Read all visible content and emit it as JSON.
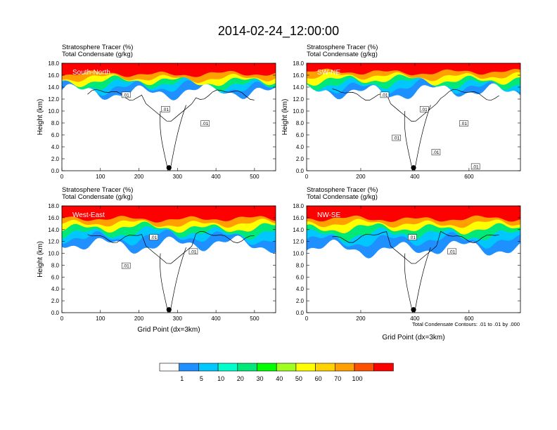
{
  "figure": {
    "title": "2014-02-24_12:00:00",
    "contour_note": "Total Condensate Contours: .01 to .01 by .000"
  },
  "colorbar": {
    "colors": [
      "#ffffff",
      "#1e90ff",
      "#00c8ff",
      "#00ffcc",
      "#00e878",
      "#00ff00",
      "#a0ff20",
      "#ffff00",
      "#ffd200",
      "#ffa000",
      "#ff5000",
      "#ff0000"
    ],
    "labels": [
      "1",
      "5",
      "10",
      "20",
      "30",
      "40",
      "50",
      "60",
      "70",
      "100"
    ]
  },
  "chart_data": [
    {
      "type": "heatmap",
      "panel": "South-North",
      "title_lines": [
        "Stratosphere Tracer   (%)",
        "Total Condensate   (g/kg)"
      ],
      "inset_label": "South-North",
      "xlabel": "",
      "ylabel": "Height (km)",
      "xlim": [
        0,
        555
      ],
      "ylim": [
        0,
        18
      ],
      "xticks": [
        "0",
        "100",
        "200",
        "300",
        "400",
        "500"
      ],
      "yticks": [
        "0.0",
        "2.0",
        "4.0",
        "6.0",
        "8.0",
        "10.0",
        "12.0",
        "14.0",
        "16.0",
        "18.0"
      ],
      "marker_x": 278,
      "contour_labels": [
        ".01",
        ".01",
        ".01"
      ],
      "tracer_levels_km": {
        "red": 16.2,
        "orange": 15.5,
        "yellow": 15.0,
        "green": 14.5,
        "cyan": 14.0,
        "blue": 13.2
      }
    },
    {
      "type": "heatmap",
      "panel": "SW-NE",
      "title_lines": [
        "Stratosphere Tracer   (%)",
        "Total Condensate   (g/kg)"
      ],
      "inset_label": "SW-NE",
      "xlabel": "",
      "ylabel": "Height (km)",
      "xlim": [
        0,
        790
      ],
      "ylim": [
        0,
        18
      ],
      "xticks": [
        "0",
        "200",
        "400",
        "600"
      ],
      "yticks": [
        "0.0",
        "2.0",
        "4.0",
        "6.0",
        "8.0",
        "10.0",
        "12.0",
        "14.0",
        "16.0",
        "18.0"
      ],
      "marker_x": 395,
      "contour_labels": [
        ".01",
        ".01",
        ".01",
        ".01",
        ".01",
        ".01"
      ],
      "tracer_levels_km": {
        "red": 16.5,
        "orange": 15.8,
        "yellow": 15.2,
        "green": 14.6,
        "cyan": 14.0,
        "blue": 13.3
      }
    },
    {
      "type": "heatmap",
      "panel": "West-East",
      "title_lines": [
        "Stratosphere Tracer   (%)",
        "Total Condensate   (g/kg)"
      ],
      "inset_label": "West-East",
      "xlabel": "Grid Point (dx=3km)",
      "ylabel": "Height (km)",
      "xlim": [
        0,
        555
      ],
      "ylim": [
        0,
        18
      ],
      "xticks": [
        "0",
        "100",
        "200",
        "300",
        "400",
        "500"
      ],
      "yticks": [
        "0.0",
        "2.0",
        "4.0",
        "6.0",
        "8.0",
        "10.0",
        "12.0",
        "14.0",
        "16.0",
        "18.0"
      ],
      "marker_x": 278,
      "contour_labels": [
        ".01",
        ".01",
        ".01"
      ],
      "tracer_levels_km": {
        "red": 15.8,
        "orange": 15.0,
        "yellow": 14.3,
        "green": 13.5,
        "cyan": 12.7,
        "blue": 11.5
      }
    },
    {
      "type": "heatmap",
      "panel": "NW-SE",
      "title_lines": [
        "Stratosphere Tracer   (%)",
        "Total Condensate   (g/kg)"
      ],
      "inset_label": "NW-SE",
      "xlabel": "Grid Point (dx=3km)",
      "ylabel": "",
      "xlim": [
        0,
        790
      ],
      "ylim": [
        0,
        18
      ],
      "xticks": [
        "0",
        "200",
        "400",
        "600"
      ],
      "yticks": [
        "0.0",
        "2.0",
        "4.0",
        "6.0",
        "8.0",
        "10.0",
        "12.0",
        "14.0",
        "16.0",
        "18.0"
      ],
      "marker_x": 395,
      "contour_labels": [
        ".01",
        ".01"
      ],
      "tracer_levels_km": {
        "red": 15.8,
        "orange": 15.0,
        "yellow": 14.2,
        "green": 13.2,
        "cyan": 12.2,
        "blue": 10.8
      }
    }
  ]
}
